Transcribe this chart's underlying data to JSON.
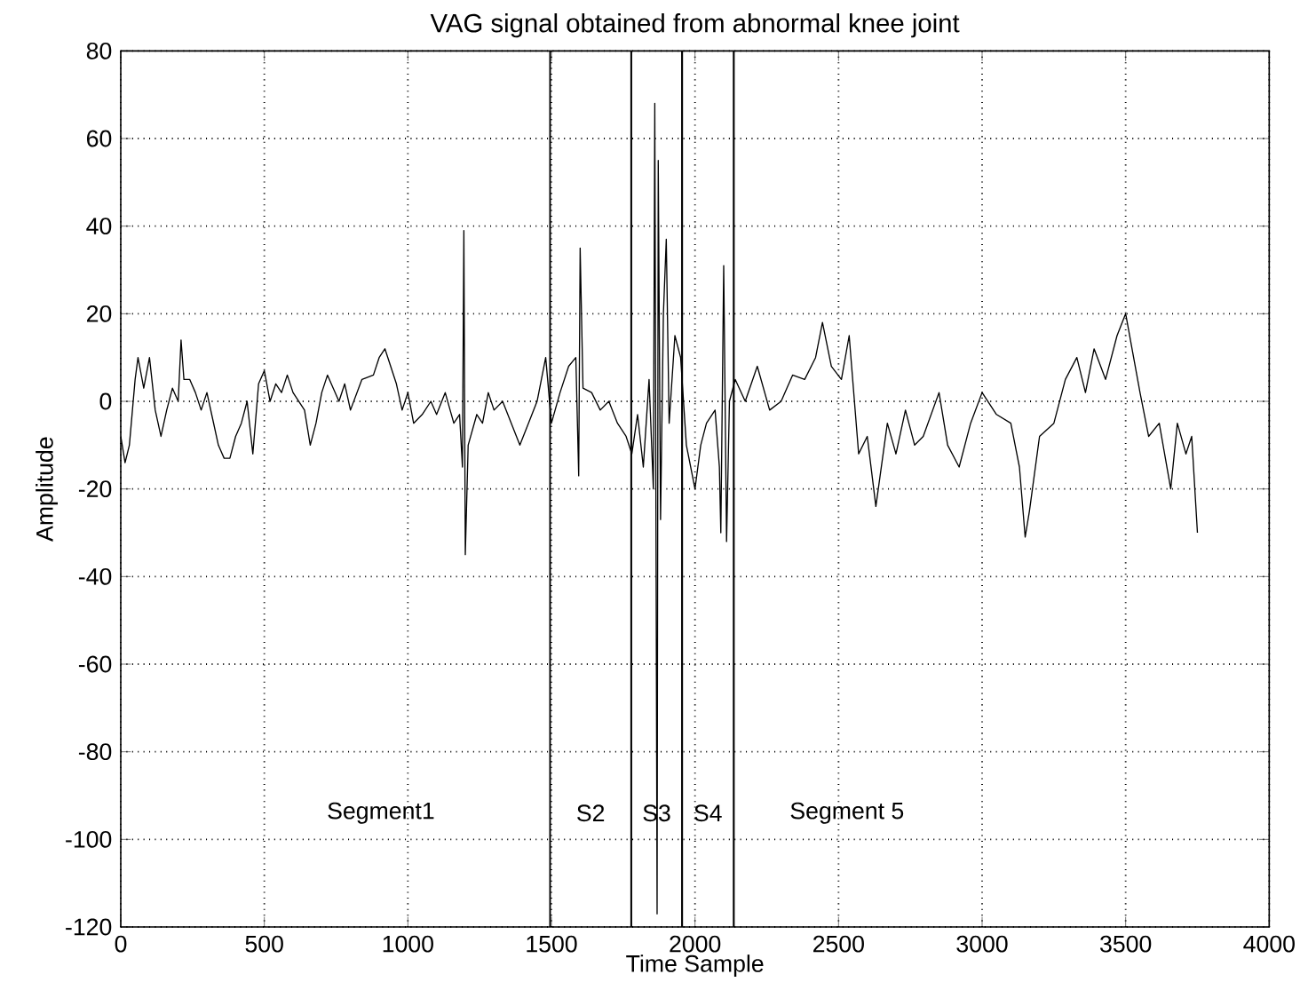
{
  "chart_data": {
    "type": "line",
    "title": "VAG signal obtained from abnormal knee joint",
    "xlabel": "Time Sample",
    "ylabel": "Amplitude",
    "xlim": [
      0,
      4000
    ],
    "ylim": [
      -120,
      80
    ],
    "xticks": [
      0,
      500,
      1000,
      1500,
      2000,
      2500,
      3000,
      3500,
      4000
    ],
    "yticks": [
      -120,
      -100,
      -80,
      -60,
      -40,
      -20,
      0,
      20,
      40,
      60,
      80
    ],
    "grid": true,
    "marker": "none",
    "line_style": "solid",
    "series": [
      {
        "color": "#000000",
        "x": [
          0,
          15,
          30,
          50,
          60,
          80,
          100,
          120,
          140,
          160,
          180,
          200,
          210,
          220,
          240,
          260,
          280,
          300,
          320,
          340,
          360,
          380,
          400,
          420,
          440,
          460,
          480,
          500,
          520,
          540,
          560,
          580,
          600,
          640,
          660,
          680,
          700,
          720,
          740,
          760,
          780,
          800,
          840,
          880,
          900,
          920,
          940,
          960,
          980,
          1000,
          1020,
          1050,
          1080,
          1100,
          1130,
          1160,
          1180,
          1190,
          1195,
          1200,
          1210,
          1240,
          1260,
          1280,
          1300,
          1330,
          1360,
          1390,
          1420,
          1450,
          1480,
          1500,
          1530,
          1560,
          1585,
          1595,
          1600,
          1610,
          1640,
          1670,
          1700,
          1730,
          1760,
          1780,
          1800,
          1820,
          1840,
          1855,
          1860,
          1868,
          1872,
          1880,
          1890,
          1900,
          1910,
          1930,
          1950,
          1970,
          2000,
          2020,
          2040,
          2070,
          2085,
          2090,
          2100,
          2110,
          2120,
          2140,
          2175,
          2217,
          2260,
          2300,
          2340,
          2382,
          2420,
          2444,
          2475,
          2510,
          2537,
          2570,
          2600,
          2630,
          2670,
          2700,
          2733,
          2765,
          2795,
          2850,
          2880,
          2920,
          2960,
          3000,
          3050,
          3100,
          3130,
          3150,
          3165,
          3200,
          3250,
          3290,
          3330,
          3360,
          3390,
          3430,
          3470,
          3500,
          3550,
          3580,
          3617,
          3657,
          3680,
          3710,
          3730,
          3750
        ],
        "values": [
          -8,
          -14,
          -10,
          5,
          10,
          3,
          10,
          -2,
          -8,
          -2,
          3,
          0,
          14,
          5,
          5,
          2,
          -2,
          2,
          -4,
          -10,
          -13,
          -13,
          -8,
          -5,
          0,
          -12,
          4,
          7,
          0,
          4,
          2,
          6,
          2,
          -2,
          -10,
          -5,
          2,
          6,
          3,
          0,
          4,
          -2,
          5,
          6,
          10,
          12,
          8,
          4,
          -2,
          2,
          -5,
          -3,
          0,
          -3,
          2,
          -5,
          -3,
          -15,
          39,
          -35,
          -10,
          -3,
          -5,
          2,
          -2,
          0,
          -5,
          -10,
          -5,
          0,
          10,
          -5,
          2,
          8,
          10,
          -17,
          35,
          3,
          2,
          -2,
          0,
          -5,
          -8,
          -12,
          -3,
          -15,
          5,
          -20,
          68,
          -117,
          55,
          -27,
          20,
          37,
          -5,
          15,
          10,
          -10,
          -20,
          -10,
          -5,
          -2,
          -15,
          -30,
          31,
          -32,
          0,
          5,
          0,
          8,
          -2,
          0,
          6,
          5,
          10,
          18,
          8,
          5,
          15,
          -12,
          -8,
          -24,
          -5,
          -12,
          -2,
          -10,
          -8,
          2,
          -10,
          -15,
          -5,
          2,
          -3,
          -5,
          -15,
          -31,
          -25,
          -8,
          -5,
          5,
          10,
          2,
          12,
          5,
          15,
          20,
          2,
          -8,
          -5,
          -20,
          -5,
          -12,
          -8,
          -30
        ]
      }
    ],
    "ref_lines": [
      {
        "axis": "x",
        "value": 1495,
        "color": "#000000"
      },
      {
        "axis": "x",
        "value": 1778,
        "color": "#000000"
      },
      {
        "axis": "x",
        "value": 1955,
        "color": "#000000"
      },
      {
        "axis": "x",
        "value": 2135,
        "color": "#000000"
      }
    ],
    "annotations": [
      "Segment1",
      "S2",
      "S3",
      "S4",
      "Segment 5"
    ]
  }
}
